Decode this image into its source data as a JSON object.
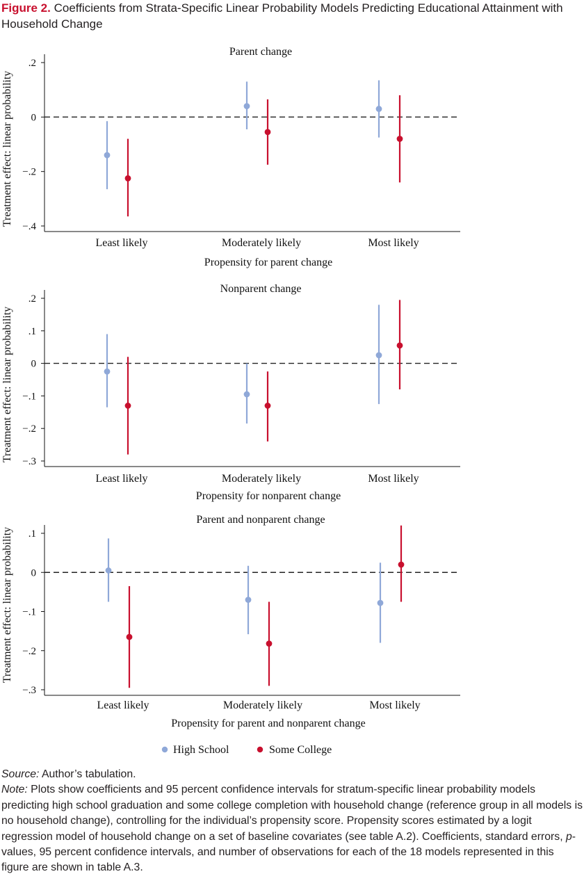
{
  "figure": {
    "label": "Figure 2.",
    "title": "Coefficients from Strata-Specific Linear Probability Models Predicting Educational Attainment with Household Change"
  },
  "chart_data": [
    {
      "type": "scatter",
      "title": "Parent change",
      "ylabel": "Treatment effect: linear probability",
      "xlabel": "Propensity for parent change",
      "categories": [
        "Least likely",
        "Moderately likely",
        "Most likely"
      ],
      "yticks": [
        ".2",
        "0",
        "−.2",
        "−.4"
      ],
      "ylim": [
        -0.4,
        0.2
      ],
      "reference_line_y": 0,
      "series": [
        {
          "name": "High School",
          "color": "#8fa8d8",
          "values": [
            -0.14,
            0.04,
            0.03
          ],
          "ci_low": [
            -0.265,
            -0.045,
            -0.075
          ],
          "ci_high": [
            -0.015,
            0.13,
            0.135
          ]
        },
        {
          "name": "Some College",
          "color": "#c8102e",
          "values": [
            -0.225,
            -0.055,
            -0.08
          ],
          "ci_low": [
            -0.365,
            -0.175,
            -0.24
          ],
          "ci_high": [
            -0.08,
            0.065,
            0.08
          ]
        }
      ]
    },
    {
      "type": "scatter",
      "title": "Nonparent change",
      "ylabel": "Treatment effect: linear probability",
      "xlabel": "Propensity for nonparent change",
      "categories": [
        "Least likely",
        "Moderately likely",
        "Most likely"
      ],
      "yticks": [
        ".2",
        ".1",
        "0",
        "−.1",
        "−.2",
        "−.3"
      ],
      "ylim": [
        -0.3,
        0.2
      ],
      "reference_line_y": 0,
      "series": [
        {
          "name": "High School",
          "color": "#8fa8d8",
          "values": [
            -0.025,
            -0.095,
            0.025
          ],
          "ci_low": [
            -0.135,
            -0.185,
            -0.125
          ],
          "ci_high": [
            0.09,
            0.0,
            0.18
          ]
        },
        {
          "name": "Some College",
          "color": "#c8102e",
          "values": [
            -0.13,
            -0.13,
            0.055
          ],
          "ci_low": [
            -0.28,
            -0.24,
            -0.08
          ],
          "ci_high": [
            0.02,
            -0.025,
            0.195
          ]
        }
      ]
    },
    {
      "type": "scatter",
      "title": "Parent and nonparent change",
      "ylabel": "Treatment effect: linear probability",
      "xlabel": "Propensity for parent and nonparent change",
      "categories": [
        "Least likely",
        "Moderately likely",
        "Most likely"
      ],
      "yticks": [
        ".1",
        "0",
        "−.1",
        "−.2",
        "−.3"
      ],
      "ylim": [
        -0.3,
        0.1
      ],
      "reference_line_y": 0,
      "series": [
        {
          "name": "High School",
          "color": "#8fa8d8",
          "values": [
            0.005,
            -0.07,
            -0.078
          ],
          "ci_low": [
            -0.075,
            -0.158,
            -0.18
          ],
          "ci_high": [
            0.087,
            0.017,
            0.025
          ]
        },
        {
          "name": "Some College",
          "color": "#c8102e",
          "values": [
            -0.165,
            -0.182,
            0.02
          ],
          "ci_low": [
            -0.295,
            -0.29,
            -0.075
          ],
          "ci_high": [
            -0.035,
            -0.075,
            0.12
          ]
        }
      ]
    }
  ],
  "legend": [
    {
      "label": "High School",
      "color": "#8fa8d8"
    },
    {
      "label": "Some College",
      "color": "#c8102e"
    }
  ],
  "notes": {
    "source_label": "Source:",
    "source_text": " Author’s tabulation.",
    "note_label": "Note:",
    "note_text_1": " Plots show coefficients and 95 percent confidence intervals for stratum-specific linear probability models predicting high school graduation and some college completion with household change (reference group in all models is no household change), controlling for the individual’s propensity score. Propensity scores estimated by a logit regression model of household change on a set of baseline covariates (see table A.2). Coefficients, standard errors, ",
    "note_italic": "p",
    "note_text_2": "-values, 95 percent confidence intervals, and number of observations for each of the 18 models represented in this figure are shown in table A.3."
  }
}
